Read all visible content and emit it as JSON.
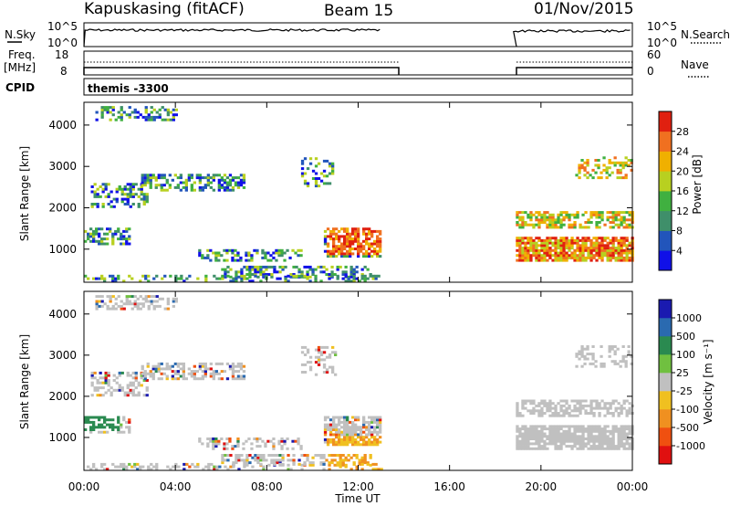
{
  "header": {
    "station": "Kapuskasing (fitACF)",
    "beam": "Beam 15",
    "date": "01/Nov/2015"
  },
  "noise_panel": {
    "left_label": "N.Sky",
    "left_ticks": [
      "10^5",
      "10^0"
    ],
    "right_label": "N.Search",
    "right_ticks": [
      "10^5",
      "10^0"
    ]
  },
  "freq_panel": {
    "left_label_line1": "Freq.",
    "left_label_line2": "[MHz]",
    "left_ticks": [
      "18",
      "8"
    ],
    "right_label": "Nave",
    "right_ticks": [
      "60",
      "0"
    ]
  },
  "cpid_panel": {
    "label": "CPID",
    "value": "themis -3300"
  },
  "chart_data": [
    {
      "type": "heatmap",
      "name": "power",
      "ylabel": "Slant Range [km]",
      "ylim": [
        200,
        4550
      ],
      "yticks": [
        "1000",
        "2000",
        "3000",
        "4000"
      ],
      "colorbar_label": "Power [dB]",
      "colorbar_ticks": [
        "4",
        "8",
        "12",
        "16",
        "20",
        "24",
        "28"
      ],
      "colorbar_colors": [
        "#1010e8",
        "#2255bb",
        "#3f8f6a",
        "#40b040",
        "#b8d020",
        "#f0b000",
        "#f07020",
        "#e02010"
      ],
      "data_gap": [
        "13:00",
        "18:45"
      ]
    },
    {
      "type": "heatmap",
      "name": "velocity",
      "ylabel": "Slant Range [km]",
      "ylim": [
        200,
        4550
      ],
      "yticks": [
        "1000",
        "2000",
        "3000",
        "4000"
      ],
      "colorbar_label": "Velocity [m s⁻¹]",
      "colorbar_ticks": [
        "1000",
        "500",
        "100",
        "25",
        "-25",
        "-100",
        "-500",
        "-1000"
      ],
      "colorbar_colors": [
        "#1a1ab0",
        "#2a6ab0",
        "#2a8a50",
        "#70c040",
        "#c0c0c0",
        "#f0c020",
        "#f09020",
        "#f05010",
        "#e01010"
      ],
      "data_gap": [
        "13:00",
        "18:45"
      ]
    }
  ],
  "time_axis": {
    "ticks": [
      "00:00",
      "04:00",
      "08:00",
      "12:00",
      "16:00",
      "20:00",
      "00:00"
    ],
    "label": "Time UT",
    "range_hours": [
      0,
      24
    ]
  }
}
